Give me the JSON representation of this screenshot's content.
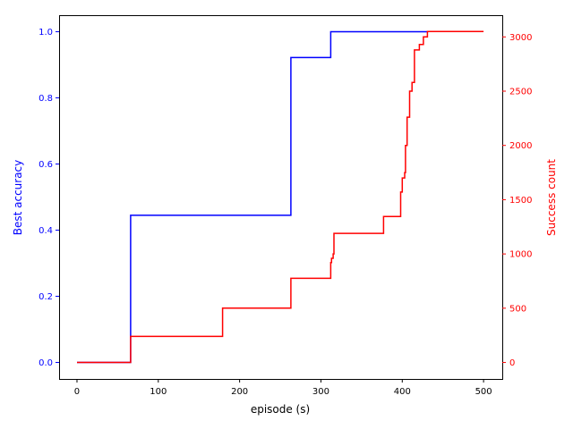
{
  "chart_data": {
    "type": "line",
    "xlabel": "episode (s)",
    "ylabel_left": "Best accuracy",
    "ylabel_right": "Success count",
    "xlim": [
      -22,
      523
    ],
    "ylim_left": [
      -0.05,
      1.05
    ],
    "ylim_right": [
      -152,
      3200
    ],
    "x_ticks": [
      0,
      100,
      200,
      300,
      400,
      500
    ],
    "y_ticks_left": [
      0.0,
      0.2,
      0.4,
      0.6,
      0.8,
      1.0
    ],
    "y_ticks_left_labels": [
      "0.0",
      "0.2",
      "0.4",
      "0.6",
      "0.8",
      "1.0"
    ],
    "y_ticks_right": [
      0,
      500,
      1000,
      1500,
      2000,
      2500,
      3000
    ],
    "grid": false,
    "legend": "none",
    "colors": {
      "left": "#0000ff",
      "right": "#ff0000"
    },
    "series": [
      {
        "axis": "left",
        "color": "#0000ff",
        "step": true,
        "points": [
          [
            0,
            0.0
          ],
          [
            65,
            0.0
          ],
          [
            66,
            0.445
          ],
          [
            262,
            0.445
          ],
          [
            263,
            0.922
          ],
          [
            311,
            0.922
          ],
          [
            312,
            1.0
          ],
          [
            432,
            1.0
          ]
        ]
      },
      {
        "axis": "right",
        "color": "#ff0000",
        "step": true,
        "points": [
          [
            0,
            0
          ],
          [
            65,
            0
          ],
          [
            66,
            240
          ],
          [
            178,
            240
          ],
          [
            179,
            500
          ],
          [
            262,
            500
          ],
          [
            263,
            775
          ],
          [
            311,
            775
          ],
          [
            312,
            920
          ],
          [
            313,
            960
          ],
          [
            315,
            1000
          ],
          [
            316,
            1190
          ],
          [
            376,
            1190
          ],
          [
            377,
            1345
          ],
          [
            397,
            1345
          ],
          [
            398,
            1570
          ],
          [
            400,
            1700
          ],
          [
            403,
            1750
          ],
          [
            404,
            2000
          ],
          [
            406,
            2260
          ],
          [
            408,
            2260
          ],
          [
            409,
            2500
          ],
          [
            412,
            2580
          ],
          [
            415,
            2880
          ],
          [
            420,
            2880
          ],
          [
            421,
            2930
          ],
          [
            425,
            2930
          ],
          [
            426,
            3000
          ],
          [
            430,
            3000
          ],
          [
            431,
            3050
          ],
          [
            500,
            3050
          ]
        ]
      }
    ]
  }
}
